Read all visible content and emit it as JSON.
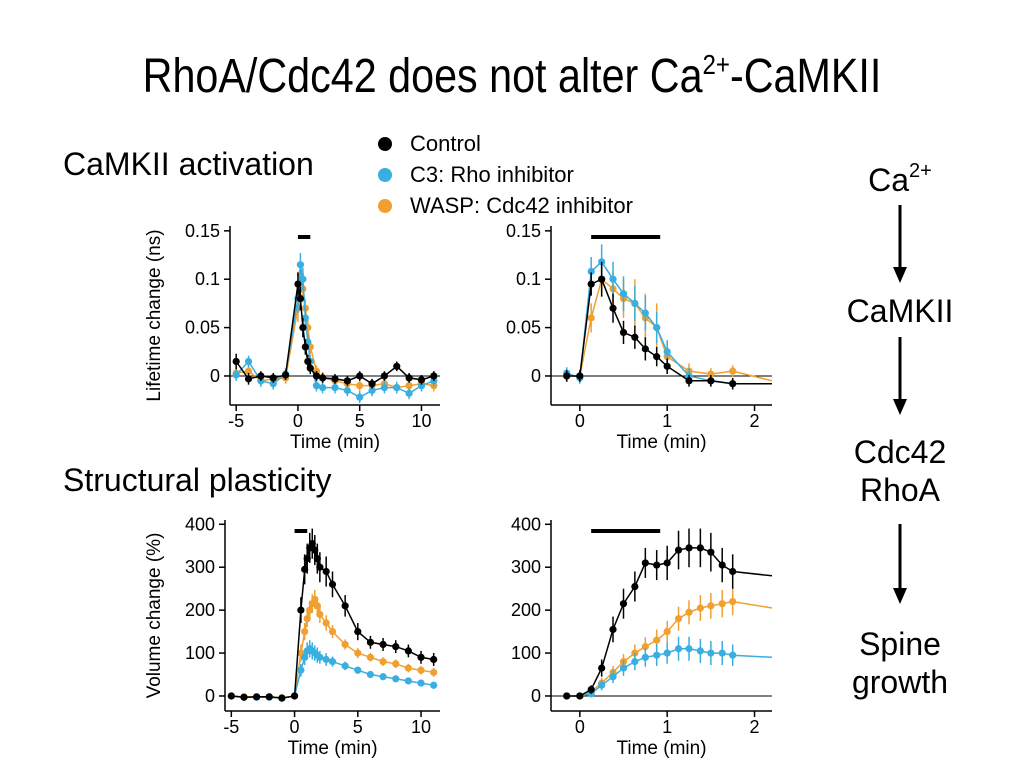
{
  "slide": {
    "title_main": "RhoA/Cdc42 does not alter Ca",
    "title_sup": "2+",
    "title_end": "-CaMKII",
    "section_1": "CaMKII activation",
    "section_2": "Structural plasticity"
  },
  "legend": [
    {
      "label": "Control",
      "color": "#000000"
    },
    {
      "label": "C3: Rho inhibitor",
      "color": "#39aee0"
    },
    {
      "label": "WASP: Cdc42 inhibitor",
      "color": "#f0a030"
    }
  ],
  "pathway": {
    "step1_base": "Ca",
    "step1_sup": "2+",
    "step2": "CaMKII",
    "step3_line1": "Cdc42",
    "step3_line2": "RhoA",
    "step4_line1": "Spine",
    "step4_line2": "growth"
  },
  "chart_data": [
    {
      "id": "lifetime-long",
      "type": "line",
      "xlabel": "Time (min)",
      "ylabel": "Lifetime change (ns)",
      "xlim": [
        -5.5,
        11.5
      ],
      "ylim": [
        -0.03,
        0.155
      ],
      "xticks": [
        -5,
        0,
        5,
        10
      ],
      "xtick_labels": [
        "-5",
        "0",
        "5",
        "10"
      ],
      "yticks": [
        0,
        0.05,
        0.1,
        0.15
      ],
      "ytick_labels": [
        "0",
        "0.05",
        "0.1",
        "0.15"
      ],
      "zero_line": true,
      "stim_bar": [
        0,
        1
      ],
      "series": [
        {
          "name": "Control",
          "color": "#000000",
          "x": [
            -5,
            -4,
            -3,
            -2,
            -1,
            0,
            0.2,
            0.4,
            0.6,
            0.8,
            1.0,
            1.5,
            2,
            3,
            4,
            5,
            6,
            7,
            8,
            9,
            10,
            11
          ],
          "y": [
            0.015,
            -0.003,
            0.0,
            -0.002,
            0.001,
            0.095,
            0.08,
            0.05,
            0.03,
            0.015,
            0.008,
            0.0,
            -0.002,
            -0.003,
            -0.005,
            0.0,
            -0.008,
            0.0,
            0.01,
            -0.002,
            -0.004,
            0.0
          ],
          "err": [
            0.008,
            0.006,
            0.005,
            0.005,
            0.005,
            0.012,
            0.012,
            0.01,
            0.008,
            0.007,
            0.006,
            0.005,
            0.005,
            0.005,
            0.005,
            0.005,
            0.005,
            0.005,
            0.005,
            0.005,
            0.005,
            0.005
          ]
        },
        {
          "name": "C3: Rho inhibitor",
          "color": "#39aee0",
          "x": [
            -5,
            -4,
            -3,
            -2,
            -1,
            0,
            0.2,
            0.4,
            0.6,
            0.8,
            1.0,
            1.5,
            2,
            3,
            4,
            5,
            6,
            7,
            8,
            9,
            10,
            11
          ],
          "y": [
            0.001,
            0.015,
            -0.005,
            -0.008,
            0.002,
            0.08,
            0.115,
            0.1,
            0.06,
            0.035,
            0.015,
            -0.01,
            -0.012,
            -0.012,
            -0.015,
            -0.022,
            -0.015,
            -0.012,
            -0.012,
            -0.018,
            -0.01,
            -0.005
          ],
          "err": [
            0.006,
            0.006,
            0.006,
            0.006,
            0.006,
            0.015,
            0.012,
            0.012,
            0.01,
            0.008,
            0.007,
            0.006,
            0.006,
            0.006,
            0.006,
            0.006,
            0.006,
            0.006,
            0.006,
            0.006,
            0.006,
            0.006
          ]
        },
        {
          "name": "WASP: Cdc42 inhibitor",
          "color": "#f0a030",
          "x": [
            -5,
            -4,
            -3,
            -2,
            -1,
            0,
            0.2,
            0.4,
            0.6,
            0.8,
            1.0,
            1.5,
            2,
            3,
            4,
            5,
            6,
            7,
            8,
            9,
            10,
            11
          ],
          "y": [
            0.003,
            0.005,
            -0.005,
            -0.003,
            -0.002,
            0.07,
            0.105,
            0.09,
            0.07,
            0.05,
            0.03,
            0.005,
            -0.002,
            -0.005,
            -0.008,
            -0.01,
            -0.01,
            -0.008,
            -0.012,
            -0.01,
            -0.008,
            -0.01
          ],
          "err": [
            0.006,
            0.006,
            0.006,
            0.006,
            0.006,
            0.014,
            0.012,
            0.012,
            0.01,
            0.008,
            0.007,
            0.006,
            0.006,
            0.006,
            0.006,
            0.006,
            0.006,
            0.006,
            0.006,
            0.006,
            0.006,
            0.006
          ]
        }
      ]
    },
    {
      "id": "lifetime-short",
      "type": "line",
      "xlabel": "Time (min)",
      "ylabel": "",
      "xlim": [
        -0.33,
        2.2
      ],
      "ylim": [
        -0.03,
        0.155
      ],
      "xticks": [
        0,
        1,
        2
      ],
      "xtick_labels": [
        "0",
        "1",
        "2"
      ],
      "yticks": [
        0,
        0.05,
        0.1,
        0.15
      ],
      "ytick_labels": [
        "0",
        "0.05",
        "0.1",
        "0.15"
      ],
      "zero_line": true,
      "stim_bar": [
        0.13,
        0.92
      ],
      "series": [
        {
          "name": "Control",
          "color": "#000000",
          "x": [
            -0.15,
            0.0,
            0.13,
            0.25,
            0.38,
            0.5,
            0.63,
            0.75,
            0.88,
            1.0,
            1.25,
            1.5,
            1.75,
            2.2
          ],
          "y": [
            0.0,
            0.0,
            0.095,
            0.1,
            0.07,
            0.045,
            0.04,
            0.028,
            0.02,
            0.01,
            -0.005,
            -0.005,
            -0.008,
            -0.008
          ],
          "err": [
            0.006,
            0.006,
            0.012,
            0.018,
            0.015,
            0.012,
            0.012,
            0.012,
            0.01,
            0.008,
            0.006,
            0.006,
            0.006,
            0.0
          ]
        },
        {
          "name": "C3: Rho inhibitor",
          "color": "#39aee0",
          "x": [
            -0.15,
            0.0,
            0.13,
            0.25,
            0.38,
            0.5,
            0.63,
            0.75,
            0.88,
            1.0,
            1.25,
            1.5,
            1.75,
            2.2
          ],
          "y": [
            0.003,
            -0.002,
            0.108,
            0.118,
            0.1,
            0.085,
            0.075,
            0.065,
            0.05,
            0.025,
            0.0,
            -0.005,
            -0.008,
            -0.008
          ],
          "err": [
            0.006,
            0.006,
            0.015,
            0.018,
            0.018,
            0.018,
            0.018,
            0.018,
            0.016,
            0.012,
            0.008,
            0.006,
            0.006,
            0.0
          ]
        },
        {
          "name": "WASP: Cdc42 inhibitor",
          "color": "#f0a030",
          "x": [
            -0.15,
            0.0,
            0.13,
            0.25,
            0.38,
            0.5,
            0.63,
            0.75,
            0.88,
            1.0,
            1.25,
            1.5,
            1.75,
            2.2
          ],
          "y": [
            0.0,
            0.0,
            0.06,
            0.1,
            0.09,
            0.08,
            0.075,
            0.06,
            0.05,
            0.02,
            0.005,
            0.002,
            0.005,
            -0.005
          ],
          "err": [
            0.006,
            0.006,
            0.015,
            0.018,
            0.018,
            0.02,
            0.025,
            0.025,
            0.025,
            0.015,
            0.008,
            0.006,
            0.006,
            0.0
          ]
        }
      ]
    },
    {
      "id": "volume-long",
      "type": "line",
      "xlabel": "Time (min)",
      "ylabel": "Volume change (%)",
      "xlim": [
        -5.5,
        11.5
      ],
      "ylim": [
        -35,
        410
      ],
      "xticks": [
        -5,
        0,
        5,
        10
      ],
      "xtick_labels": [
        "-5",
        "0",
        "5",
        "10"
      ],
      "yticks": [
        0,
        100,
        200,
        300,
        400
      ],
      "ytick_labels": [
        "0",
        "100",
        "200",
        "300",
        "400"
      ],
      "zero_line": false,
      "stim_bar": [
        0,
        1
      ],
      "series": [
        {
          "name": "Control",
          "color": "#000000",
          "x": [
            -5,
            -4,
            -3,
            -2,
            -1,
            0,
            0.5,
            0.8,
            1.0,
            1.2,
            1.4,
            1.6,
            1.8,
            2.0,
            2.5,
            3,
            4,
            5,
            6,
            7,
            8,
            9,
            10,
            11
          ],
          "y": [
            0,
            -3,
            -2,
            -2,
            -5,
            0,
            200,
            295,
            320,
            345,
            355,
            340,
            320,
            300,
            290,
            260,
            210,
            150,
            125,
            120,
            115,
            105,
            90,
            85
          ],
          "err": [
            8,
            6,
            6,
            6,
            6,
            8,
            30,
            35,
            35,
            35,
            35,
            35,
            35,
            35,
            35,
            30,
            25,
            20,
            15,
            15,
            15,
            15,
            15,
            15
          ]
        },
        {
          "name": "C3: Rho inhibitor",
          "color": "#39aee0",
          "x": [
            -5,
            -4,
            -3,
            -2,
            -1,
            0,
            0.5,
            0.8,
            1.0,
            1.2,
            1.4,
            1.6,
            1.8,
            2.0,
            2.5,
            3,
            4,
            5,
            6,
            7,
            8,
            9,
            10,
            11
          ],
          "y": [
            0,
            -3,
            -3,
            -3,
            -5,
            0,
            60,
            90,
            105,
            110,
            105,
            100,
            95,
            90,
            85,
            80,
            70,
            60,
            50,
            45,
            40,
            35,
            30,
            25
          ],
          "err": [
            6,
            5,
            5,
            5,
            5,
            6,
            15,
            18,
            20,
            20,
            20,
            18,
            18,
            15,
            15,
            12,
            10,
            8,
            8,
            8,
            8,
            8,
            8,
            8
          ]
        },
        {
          "name": "WASP: Cdc42 inhibitor",
          "color": "#f0a030",
          "x": [
            -5,
            -4,
            -3,
            -2,
            -1,
            0,
            0.5,
            0.8,
            1.0,
            1.2,
            1.4,
            1.6,
            1.8,
            2.0,
            2.5,
            3,
            4,
            5,
            6,
            7,
            8,
            9,
            10,
            11
          ],
          "y": [
            0,
            -2,
            -2,
            -2,
            -4,
            0,
            100,
            150,
            180,
            200,
            215,
            225,
            210,
            190,
            170,
            150,
            120,
            100,
            90,
            80,
            75,
            65,
            60,
            55
          ],
          "err": [
            6,
            5,
            5,
            5,
            5,
            6,
            20,
            20,
            20,
            22,
            22,
            22,
            20,
            20,
            18,
            15,
            12,
            12,
            10,
            10,
            10,
            10,
            10,
            10
          ]
        }
      ]
    },
    {
      "id": "volume-short",
      "type": "line",
      "xlabel": "Time (min)",
      "ylabel": "",
      "xlim": [
        -0.33,
        2.2
      ],
      "ylim": [
        -35,
        410
      ],
      "xticks": [
        0,
        1,
        2
      ],
      "xtick_labels": [
        "0",
        "1",
        "2"
      ],
      "yticks": [
        0,
        100,
        200,
        300,
        400
      ],
      "ytick_labels": [
        "0",
        "100",
        "200",
        "300",
        "400"
      ],
      "zero_line": true,
      "stim_bar": [
        0.13,
        0.92
      ],
      "series": [
        {
          "name": "Control",
          "color": "#000000",
          "x": [
            -0.15,
            0.0,
            0.13,
            0.25,
            0.38,
            0.5,
            0.63,
            0.75,
            0.88,
            1.0,
            1.13,
            1.25,
            1.38,
            1.5,
            1.63,
            1.75,
            2.2
          ],
          "y": [
            0,
            0,
            15,
            65,
            155,
            215,
            255,
            310,
            305,
            310,
            340,
            345,
            345,
            335,
            305,
            290,
            280
          ],
          "err": [
            6,
            6,
            10,
            20,
            30,
            35,
            35,
            35,
            35,
            40,
            45,
            45,
            45,
            45,
            40,
            40,
            0
          ]
        },
        {
          "name": "C3: Rho inhibitor",
          "color": "#39aee0",
          "x": [
            -0.15,
            0.0,
            0.13,
            0.25,
            0.38,
            0.5,
            0.63,
            0.75,
            0.88,
            1.0,
            1.13,
            1.25,
            1.38,
            1.5,
            1.63,
            1.75,
            2.2
          ],
          "y": [
            0,
            0,
            5,
            25,
            45,
            65,
            80,
            90,
            95,
            100,
            110,
            110,
            105,
            100,
            100,
            95,
            90
          ],
          "err": [
            6,
            6,
            8,
            12,
            15,
            18,
            20,
            22,
            25,
            25,
            28,
            28,
            28,
            28,
            28,
            25,
            0
          ]
        },
        {
          "name": "WASP: Cdc42 inhibitor",
          "color": "#f0a030",
          "x": [
            -0.15,
            0.0,
            0.13,
            0.25,
            0.38,
            0.5,
            0.63,
            0.75,
            0.88,
            1.0,
            1.13,
            1.25,
            1.38,
            1.5,
            1.63,
            1.75,
            2.2
          ],
          "y": [
            0,
            0,
            10,
            30,
            55,
            80,
            100,
            115,
            130,
            150,
            180,
            195,
            205,
            210,
            215,
            220,
            205
          ],
          "err": [
            6,
            6,
            8,
            12,
            15,
            18,
            20,
            22,
            25,
            25,
            28,
            28,
            30,
            30,
            32,
            32,
            0
          ]
        }
      ]
    }
  ]
}
